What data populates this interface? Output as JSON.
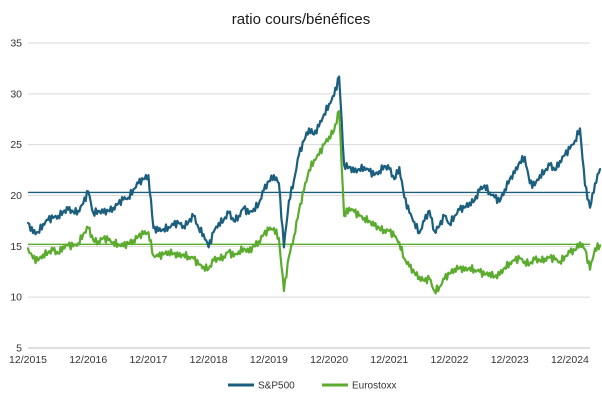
{
  "chart_data": {
    "type": "line",
    "title": "ratio cours/bénéfices",
    "xlabel": "",
    "ylabel": "",
    "ylim": [
      5,
      35
    ],
    "yticks": [
      5,
      10,
      15,
      20,
      25,
      30,
      35
    ],
    "xlim": [
      "2015-12",
      "2025-04"
    ],
    "xticks": [
      "12/2015",
      "12/2016",
      "12/2017",
      "12/2018",
      "12/2019",
      "12/2020",
      "12/2021",
      "12/2022",
      "12/2023",
      "12/2024"
    ],
    "grid": "horizontal",
    "legend": "bottom",
    "series": [
      {
        "name": "S&P500",
        "color": "#1b5e7e",
        "points": [
          [
            "2015-12",
            17.3
          ],
          [
            "2016-01",
            16.3
          ],
          [
            "2016-02",
            16.4
          ],
          [
            "2016-03",
            17.2
          ],
          [
            "2016-04",
            17.6
          ],
          [
            "2016-05",
            17.8
          ],
          [
            "2016-06",
            18.0
          ],
          [
            "2016-07",
            18.4
          ],
          [
            "2016-08",
            18.6
          ],
          [
            "2016-09",
            18.4
          ],
          [
            "2016-10",
            18.5
          ],
          [
            "2016-11",
            19.2
          ],
          [
            "2016-12",
            20.4
          ],
          [
            "2017-01",
            18.3
          ],
          [
            "2017-02",
            18.5
          ],
          [
            "2017-03",
            18.3
          ],
          [
            "2017-04",
            18.5
          ],
          [
            "2017-05",
            18.8
          ],
          [
            "2017-06",
            19.2
          ],
          [
            "2017-07",
            19.6
          ],
          [
            "2017-08",
            19.8
          ],
          [
            "2017-09",
            20.6
          ],
          [
            "2017-10",
            21.2
          ],
          [
            "2017-11",
            21.6
          ],
          [
            "2017-12",
            22.0
          ],
          [
            "2018-01",
            16.8
          ],
          [
            "2018-02",
            16.5
          ],
          [
            "2018-03",
            16.7
          ],
          [
            "2018-04",
            16.9
          ],
          [
            "2018-05",
            17.1
          ],
          [
            "2018-06",
            17.3
          ],
          [
            "2018-07",
            17.0
          ],
          [
            "2018-08",
            17.4
          ],
          [
            "2018-09",
            18.0
          ],
          [
            "2018-10",
            16.8
          ],
          [
            "2018-11",
            16.2
          ],
          [
            "2018-12",
            14.9
          ],
          [
            "2019-01",
            16.4
          ],
          [
            "2019-02",
            17.3
          ],
          [
            "2019-03",
            17.6
          ],
          [
            "2019-04",
            18.3
          ],
          [
            "2019-05",
            17.5
          ],
          [
            "2019-06",
            18.0
          ],
          [
            "2019-07",
            18.8
          ],
          [
            "2019-08",
            18.2
          ],
          [
            "2019-09",
            18.7
          ],
          [
            "2019-10",
            19.2
          ],
          [
            "2019-11",
            20.5
          ],
          [
            "2019-12",
            21.4
          ],
          [
            "2020-01",
            22.0
          ],
          [
            "2020-02",
            21.2
          ],
          [
            "2020-03",
            14.9
          ],
          [
            "2020-04",
            19.5
          ],
          [
            "2020-05",
            21.5
          ],
          [
            "2020-06",
            24.0
          ],
          [
            "2020-07",
            25.4
          ],
          [
            "2020-08",
            26.6
          ],
          [
            "2020-09",
            26.0
          ],
          [
            "2020-10",
            26.8
          ],
          [
            "2020-11",
            28.0
          ],
          [
            "2020-12",
            29.0
          ],
          [
            "2021-01",
            29.8
          ],
          [
            "2021-02",
            31.7
          ],
          [
            "2021-03",
            23.0
          ],
          [
            "2021-04",
            22.8
          ],
          [
            "2021-05",
            22.3
          ],
          [
            "2021-06",
            22.6
          ],
          [
            "2021-07",
            22.8
          ],
          [
            "2021-08",
            22.4
          ],
          [
            "2021-09",
            22.0
          ],
          [
            "2021-10",
            22.4
          ],
          [
            "2021-11",
            22.9
          ],
          [
            "2021-12",
            22.6
          ],
          [
            "2022-01",
            21.6
          ],
          [
            "2022-02",
            22.8
          ],
          [
            "2022-03",
            19.8
          ],
          [
            "2022-04",
            18.3
          ],
          [
            "2022-05",
            17.4
          ],
          [
            "2022-06",
            16.3
          ],
          [
            "2022-07",
            17.5
          ],
          [
            "2022-08",
            18.5
          ],
          [
            "2022-09",
            16.5
          ],
          [
            "2022-10",
            17.0
          ],
          [
            "2022-11",
            18.0
          ],
          [
            "2022-12",
            17.2
          ],
          [
            "2023-01",
            18.0
          ],
          [
            "2023-02",
            18.6
          ],
          [
            "2023-03",
            18.8
          ],
          [
            "2023-04",
            19.3
          ],
          [
            "2023-05",
            19.5
          ],
          [
            "2023-06",
            20.5
          ],
          [
            "2023-07",
            21.0
          ],
          [
            "2023-08",
            20.3
          ],
          [
            "2023-09",
            19.8
          ],
          [
            "2023-10",
            19.4
          ],
          [
            "2023-11",
            20.6
          ],
          [
            "2023-12",
            21.6
          ],
          [
            "2024-01",
            22.2
          ],
          [
            "2024-02",
            23.3
          ],
          [
            "2024-03",
            23.8
          ],
          [
            "2024-04",
            21.2
          ],
          [
            "2024-05",
            21.0
          ],
          [
            "2024-06",
            22.0
          ],
          [
            "2024-07",
            22.4
          ],
          [
            "2024-08",
            23.0
          ],
          [
            "2024-09",
            22.5
          ],
          [
            "2024-10",
            23.4
          ],
          [
            "2024-11",
            24.0
          ],
          [
            "2024-12",
            24.6
          ],
          [
            "2025-01",
            25.4
          ],
          [
            "2025-02",
            26.6
          ],
          [
            "2025-03",
            21.0
          ],
          [
            "2025-04",
            18.8
          ],
          [
            "2025-05",
            21.2
          ],
          [
            "2025-06",
            22.6
          ]
        ]
      },
      {
        "name": "Eurostoxx",
        "color": "#5aab2e",
        "points": [
          [
            "2015-12",
            14.8
          ],
          [
            "2016-01",
            13.8
          ],
          [
            "2016-02",
            13.6
          ],
          [
            "2016-03",
            14.2
          ],
          [
            "2016-04",
            14.4
          ],
          [
            "2016-05",
            14.6
          ],
          [
            "2016-06",
            14.3
          ],
          [
            "2016-07",
            15.0
          ],
          [
            "2016-08",
            15.1
          ],
          [
            "2016-09",
            15.0
          ],
          [
            "2016-10",
            15.3
          ],
          [
            "2016-11",
            16.2
          ],
          [
            "2016-12",
            16.8
          ],
          [
            "2017-01",
            15.6
          ],
          [
            "2017-02",
            15.5
          ],
          [
            "2017-03",
            15.8
          ],
          [
            "2017-04",
            15.6
          ],
          [
            "2017-05",
            15.4
          ],
          [
            "2017-06",
            15.2
          ],
          [
            "2017-07",
            15.0
          ],
          [
            "2017-08",
            15.3
          ],
          [
            "2017-09",
            15.6
          ],
          [
            "2017-10",
            16.0
          ],
          [
            "2017-11",
            16.2
          ],
          [
            "2017-12",
            16.4
          ],
          [
            "2018-01",
            14.1
          ],
          [
            "2018-02",
            14.0
          ],
          [
            "2018-03",
            14.2
          ],
          [
            "2018-04",
            14.5
          ],
          [
            "2018-05",
            14.3
          ],
          [
            "2018-06",
            14.0
          ],
          [
            "2018-07",
            14.2
          ],
          [
            "2018-08",
            14.0
          ],
          [
            "2018-09",
            13.8
          ],
          [
            "2018-10",
            13.2
          ],
          [
            "2018-11",
            13.0
          ],
          [
            "2018-12",
            12.8
          ],
          [
            "2019-01",
            13.6
          ],
          [
            "2019-02",
            13.8
          ],
          [
            "2019-03",
            14.0
          ],
          [
            "2019-04",
            14.5
          ],
          [
            "2019-05",
            14.0
          ],
          [
            "2019-06",
            14.5
          ],
          [
            "2019-07",
            14.8
          ],
          [
            "2019-08",
            14.4
          ],
          [
            "2019-09",
            15.0
          ],
          [
            "2019-10",
            15.5
          ],
          [
            "2019-11",
            16.2
          ],
          [
            "2019-12",
            16.6
          ],
          [
            "2020-01",
            16.8
          ],
          [
            "2020-02",
            15.8
          ],
          [
            "2020-03",
            10.6
          ],
          [
            "2020-04",
            14.0
          ],
          [
            "2020-05",
            16.0
          ],
          [
            "2020-06",
            18.5
          ],
          [
            "2020-07",
            20.5
          ],
          [
            "2020-08",
            22.5
          ],
          [
            "2020-09",
            23.5
          ],
          [
            "2020-10",
            24.0
          ],
          [
            "2020-11",
            25.0
          ],
          [
            "2020-12",
            25.8
          ],
          [
            "2021-01",
            26.4
          ],
          [
            "2021-02",
            28.3
          ],
          [
            "2021-03",
            18.0
          ],
          [
            "2021-04",
            18.8
          ],
          [
            "2021-05",
            18.4
          ],
          [
            "2021-06",
            18.0
          ],
          [
            "2021-07",
            17.8
          ],
          [
            "2021-08",
            17.5
          ],
          [
            "2021-09",
            17.0
          ],
          [
            "2021-10",
            16.8
          ],
          [
            "2021-11",
            16.6
          ],
          [
            "2021-12",
            16.5
          ],
          [
            "2022-01",
            16.0
          ],
          [
            "2022-02",
            15.4
          ],
          [
            "2022-03",
            13.8
          ],
          [
            "2022-04",
            13.0
          ],
          [
            "2022-05",
            12.4
          ],
          [
            "2022-06",
            12.0
          ],
          [
            "2022-07",
            11.6
          ],
          [
            "2022-08",
            11.8
          ],
          [
            "2022-09",
            10.6
          ],
          [
            "2022-10",
            11.0
          ],
          [
            "2022-11",
            11.8
          ],
          [
            "2022-12",
            12.3
          ],
          [
            "2023-01",
            12.8
          ],
          [
            "2023-02",
            12.9
          ],
          [
            "2023-03",
            12.6
          ],
          [
            "2023-04",
            12.9
          ],
          [
            "2023-05",
            12.7
          ],
          [
            "2023-06",
            12.5
          ],
          [
            "2023-07",
            12.2
          ],
          [
            "2023-08",
            12.4
          ],
          [
            "2023-09",
            12.0
          ],
          [
            "2023-10",
            12.2
          ],
          [
            "2023-11",
            12.9
          ],
          [
            "2023-12",
            13.4
          ],
          [
            "2024-01",
            13.6
          ],
          [
            "2024-02",
            13.8
          ],
          [
            "2024-03",
            13.5
          ],
          [
            "2024-04",
            13.3
          ],
          [
            "2024-05",
            13.7
          ],
          [
            "2024-06",
            13.6
          ],
          [
            "2024-07",
            13.8
          ],
          [
            "2024-08",
            13.9
          ],
          [
            "2024-09",
            13.7
          ],
          [
            "2024-10",
            13.5
          ],
          [
            "2024-11",
            14.0
          ],
          [
            "2024-12",
            14.4
          ],
          [
            "2025-01",
            14.6
          ],
          [
            "2025-02",
            15.4
          ],
          [
            "2025-03",
            14.7
          ],
          [
            "2025-04",
            12.7
          ],
          [
            "2025-05",
            14.8
          ],
          [
            "2025-06",
            15.1
          ]
        ]
      }
    ],
    "reference_lines": [
      {
        "series": "S&P500",
        "value": 20.3,
        "color": "#1b5e7e"
      },
      {
        "series": "Eurostoxx",
        "value": 15.2,
        "color": "#5aab2e"
      }
    ],
    "colors": {
      "grid": "#d9d9d9",
      "axis": "#bfbfbf"
    }
  }
}
